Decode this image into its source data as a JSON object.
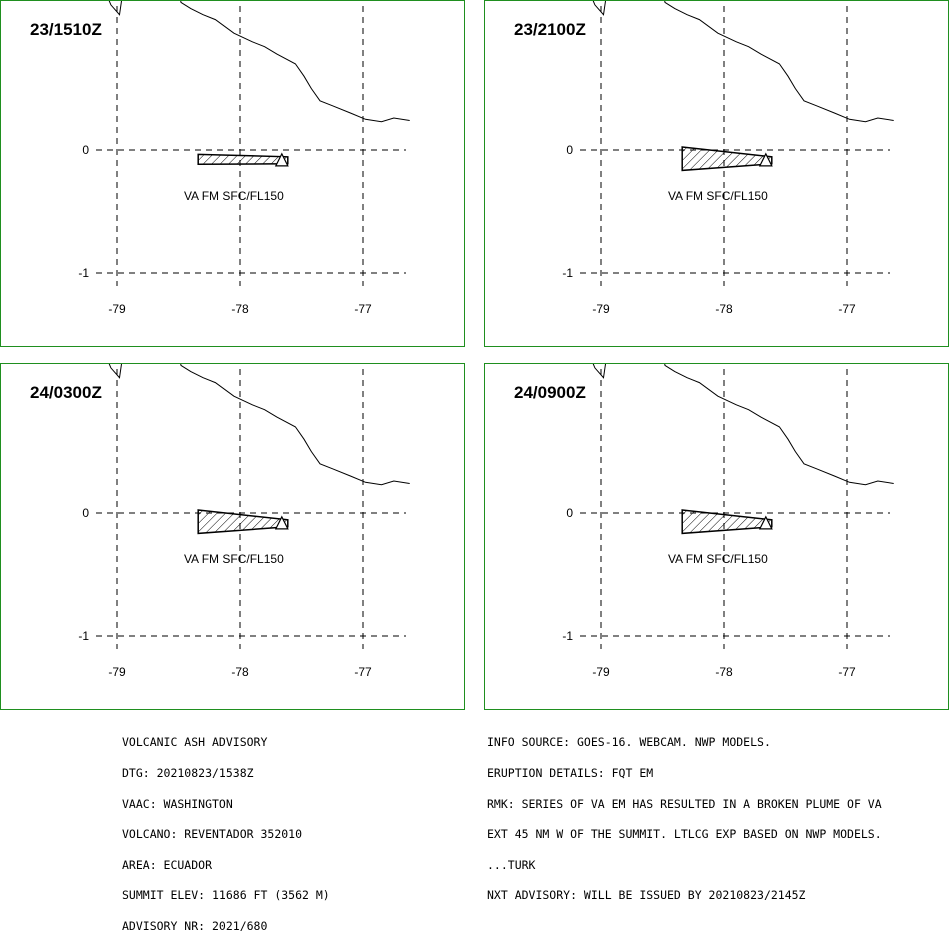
{
  "panels": [
    {
      "time": "23/1510Z",
      "plume_label": "VA FM SFC/FL150",
      "plume_width_deg": 0.08
    },
    {
      "time": "23/2100Z",
      "plume_label": "VA FM SFC/FL150",
      "plume_width_deg": 0.19
    },
    {
      "time": "24/0300Z",
      "plume_label": "VA FM SFC/FL150",
      "plume_width_deg": 0.19
    },
    {
      "time": "24/0900Z",
      "plume_label": "VA FM SFC/FL150",
      "plume_width_deg": 0.19
    }
  ],
  "axes": {
    "lon_ticks": [
      "-79",
      "-78",
      "-77"
    ],
    "lat_ticks": [
      "0",
      "-1"
    ]
  },
  "volcano": {
    "lon": -77.66,
    "lat": -0.08
  },
  "coastline": [
    [
      -79.1,
      1.3
    ],
    [
      -79.05,
      1.18
    ],
    [
      -78.98,
      1.1
    ],
    [
      -78.95,
      1.3
    ],
    [
      -78.5,
      1.3
    ],
    [
      -78.48,
      1.2
    ],
    [
      -78.4,
      1.15
    ],
    [
      -78.3,
      1.1
    ],
    [
      -78.2,
      1.06
    ],
    [
      -78.05,
      0.95
    ],
    [
      -77.9,
      0.88
    ],
    [
      -77.8,
      0.84
    ],
    [
      -77.7,
      0.78
    ],
    [
      -77.55,
      0.7
    ],
    [
      -77.48,
      0.6
    ],
    [
      -77.42,
      0.5
    ],
    [
      -77.35,
      0.4
    ],
    [
      -77.25,
      0.36
    ],
    [
      -77.1,
      0.3
    ],
    [
      -76.98,
      0.25
    ],
    [
      -76.85,
      0.23
    ],
    [
      -76.75,
      0.26
    ],
    [
      -76.62,
      0.24
    ]
  ],
  "advisory_left": [
    "VOLCANIC ASH ADVISORY",
    "DTG: 20210823/1538Z",
    "VAAC: WASHINGTON",
    "VOLCANO: REVENTADOR 352010",
    "AREA: ECUADOR",
    "SUMMIT ELEV: 11686 FT (3562 M)",
    "ADVISORY NR: 2021/680"
  ],
  "advisory_right": [
    "INFO SOURCE: GOES-16. WEBCAM. NWP MODELS.",
    "ERUPTION DETAILS: FQT EM",
    "RMK: SERIES OF VA EM HAS RESULTED IN A BROKEN PLUME OF VA",
    "EXT 45 NM W OF THE SUMMIT. LTLCG EXP BASED ON NWP MODELS.",
    "...TURK",
    "NXT ADVISORY: WILL BE ISSUED BY 20210823/2145Z"
  ],
  "colors": {
    "frame": "#1f8f1f",
    "lines": "#000000"
  }
}
